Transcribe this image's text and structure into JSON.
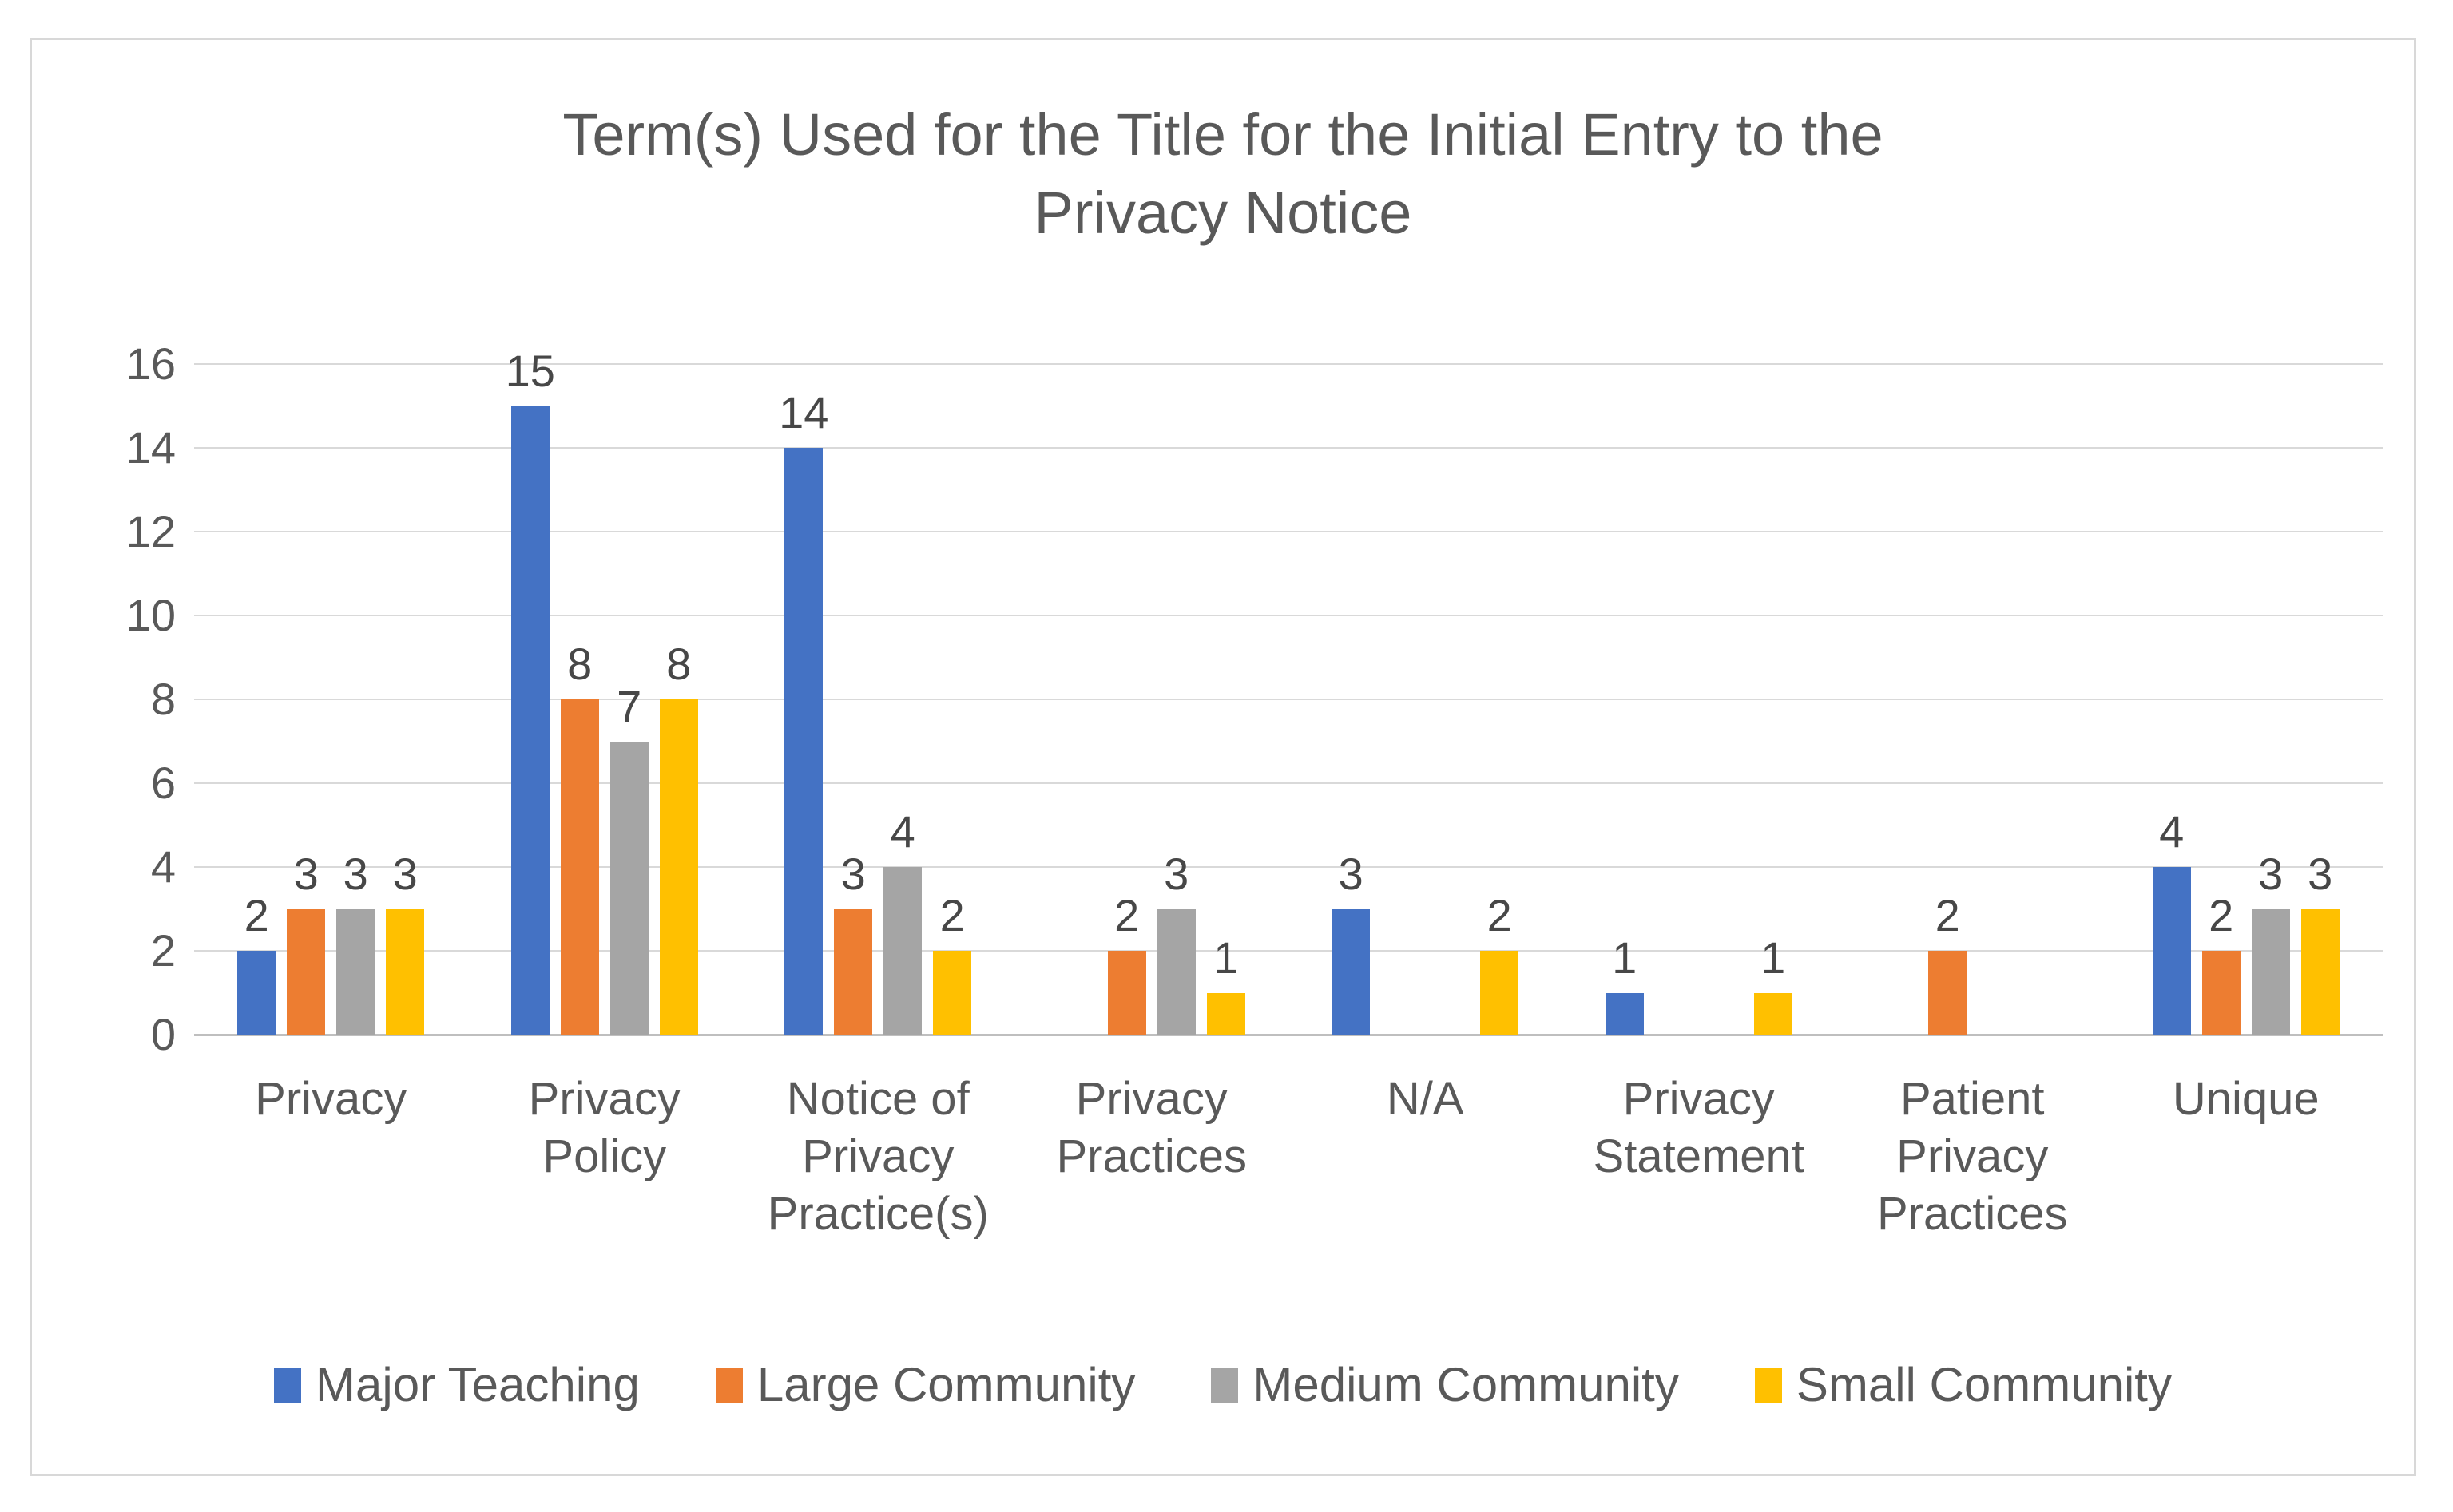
{
  "title": {
    "lines": [
      "Term(s) Used for the Title for the Initial Entry to the",
      "Privacy Notice"
    ]
  },
  "chart_data": {
    "type": "bar",
    "title": "Term(s) Used for the Title for the Initial Entry to the Privacy Notice",
    "categories": [
      "Privacy",
      "Privacy Policy",
      "Notice of Privacy Practice(s)",
      "Privacy Practices",
      "N/A",
      "Privacy Statement",
      "Patient Privacy Practices",
      "Unique"
    ],
    "category_label_lines": [
      [
        "Privacy"
      ],
      [
        "Privacy",
        "Policy"
      ],
      [
        "Notice of",
        "Privacy",
        "Practice(s)"
      ],
      [
        "Privacy",
        "Practices"
      ],
      [
        "N/A"
      ],
      [
        "Privacy",
        "Statement"
      ],
      [
        "Patient",
        "Privacy",
        "Practices"
      ],
      [
        "Unique"
      ]
    ],
    "series": [
      {
        "name": "Major Teaching",
        "color": "#4472C4",
        "values": [
          2,
          15,
          14,
          0,
          3,
          1,
          0,
          4
        ]
      },
      {
        "name": "Large Community",
        "color": "#ED7D31",
        "values": [
          3,
          8,
          3,
          2,
          0,
          0,
          2,
          2
        ]
      },
      {
        "name": "Medium Community",
        "color": "#A5A5A5",
        "values": [
          3,
          7,
          4,
          3,
          0,
          0,
          0,
          3
        ]
      },
      {
        "name": "Small Community",
        "color": "#FFC000",
        "values": [
          3,
          8,
          2,
          1,
          2,
          1,
          0,
          3
        ]
      }
    ],
    "xlabel": "",
    "ylabel": "",
    "ylim": [
      0,
      16
    ],
    "yticks": [
      0,
      2,
      4,
      6,
      8,
      10,
      12,
      14,
      16
    ],
    "grid": true,
    "data_labels": true,
    "legend_position": "bottom"
  },
  "style_colors": {
    "axis_text": "#595959",
    "data_label_text": "#474747",
    "title_text": "#595959",
    "gridline": "#D9D9D9",
    "axis_line": "#BFBFBF",
    "frame_border": "#D8D8D8",
    "background": "#FFFFFF"
  }
}
